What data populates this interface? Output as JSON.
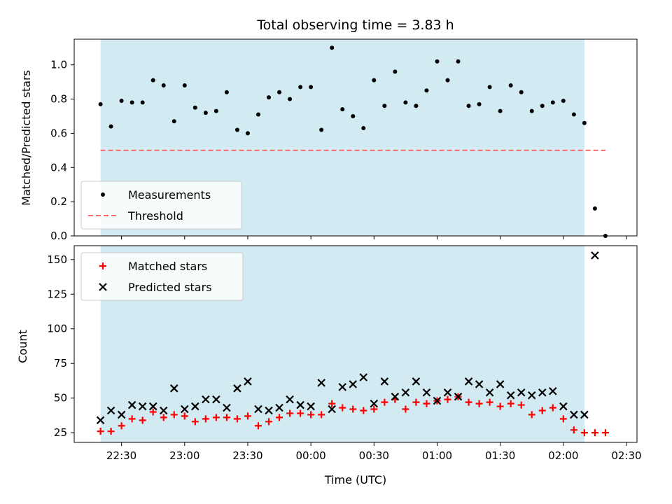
{
  "chart_data": {
    "type": "scatter",
    "title": "Total observing time = 3.83 h",
    "xlabel": "Time (UTC)",
    "x_unit": "minutes",
    "x_ticks": [
      {
        "value": 30,
        "label": "22:30"
      },
      {
        "value": 60,
        "label": "23:00"
      },
      {
        "value": 90,
        "label": "23:30"
      },
      {
        "value": 120,
        "label": "00:00"
      },
      {
        "value": 150,
        "label": "00:30"
      },
      {
        "value": 180,
        "label": "01:00"
      },
      {
        "value": 210,
        "label": "01:30"
      },
      {
        "value": 240,
        "label": "02:00"
      },
      {
        "value": 270,
        "label": "02:30"
      }
    ],
    "xlim": [
      7.5,
      275
    ],
    "shaded_interval": {
      "x": [
        20,
        250
      ],
      "color": "#add8e6"
    },
    "panels": [
      {
        "ylabel": "Matched/Predicted stars",
        "ylim": [
          0,
          1.15
        ],
        "yticks": [
          "0.0",
          "0.2",
          "0.4",
          "0.6",
          "0.8",
          "1.0"
        ],
        "legend_position": "lower-left",
        "series": [
          {
            "name": "Measurements",
            "marker": "dot",
            "color": "#000000",
            "x": [
              20,
              25,
              30,
              35,
              40,
              45,
              50,
              55,
              60,
              65,
              70,
              75,
              80,
              85,
              90,
              95,
              100,
              105,
              110,
              115,
              120,
              125,
              130,
              135,
              140,
              145,
              150,
              155,
              160,
              165,
              170,
              175,
              180,
              185,
              190,
              195,
              200,
              205,
              210,
              215,
              220,
              225,
              230,
              235,
              240,
              245,
              250,
              255,
              260
            ],
            "y": [
              0.77,
              0.64,
              0.79,
              0.78,
              0.78,
              0.91,
              0.88,
              0.67,
              0.88,
              0.75,
              0.72,
              0.73,
              0.84,
              0.62,
              0.6,
              0.71,
              0.81,
              0.84,
              0.8,
              0.87,
              0.87,
              0.62,
              1.1,
              0.74,
              0.7,
              0.63,
              0.91,
              0.76,
              0.96,
              0.78,
              0.76,
              0.85,
              1.02,
              0.91,
              1.02,
              0.76,
              0.77,
              0.87,
              0.73,
              0.88,
              0.84,
              0.73,
              0.76,
              0.78,
              0.79,
              0.71,
              0.66,
              0.16,
              0.0
            ]
          },
          {
            "name": "Threshold",
            "line_style": "dashed",
            "color": "#ff6b6b",
            "x": [
              20,
              260
            ],
            "y": [
              0.5,
              0.5
            ]
          }
        ]
      },
      {
        "ylabel": "Count",
        "ylim": [
          18,
          160
        ],
        "yticks": [
          "25",
          "50",
          "75",
          "100",
          "125",
          "150"
        ],
        "legend_position": "upper-left",
        "series": [
          {
            "name": "Matched stars",
            "marker": "plus",
            "color": "#ff0000",
            "x": [
              20,
              25,
              30,
              35,
              40,
              45,
              50,
              55,
              60,
              65,
              70,
              75,
              80,
              85,
              90,
              95,
              100,
              105,
              110,
              115,
              120,
              125,
              130,
              135,
              140,
              145,
              150,
              155,
              160,
              165,
              170,
              175,
              180,
              185,
              190,
              195,
              200,
              205,
              210,
              215,
              220,
              225,
              230,
              235,
              240,
              245,
              250,
              255,
              260
            ],
            "y": [
              26,
              26,
              30,
              35,
              34,
              40,
              36,
              38,
              37,
              33,
              35,
              36,
              36,
              35,
              37,
              30,
              33,
              36,
              39,
              39,
              38,
              38,
              46,
              43,
              42,
              41,
              42,
              47,
              49,
              42,
              47,
              46,
              48,
              49,
              51,
              47,
              46,
              47,
              44,
              46,
              45,
              38,
              41,
              43,
              35,
              27,
              25,
              25,
              25
            ]
          },
          {
            "name": "Predicted stars",
            "marker": "x",
            "color": "#000000",
            "x": [
              20,
              25,
              30,
              35,
              40,
              45,
              50,
              55,
              60,
              65,
              70,
              75,
              80,
              85,
              90,
              95,
              100,
              105,
              110,
              115,
              120,
              125,
              130,
              135,
              140,
              145,
              150,
              155,
              160,
              165,
              170,
              175,
              180,
              185,
              190,
              195,
              200,
              205,
              210,
              215,
              220,
              225,
              230,
              235,
              240,
              245,
              250,
              255
            ],
            "y": [
              34,
              41,
              38,
              45,
              44,
              44,
              41,
              57,
              42,
              44,
              49,
              49,
              43,
              57,
              62,
              42,
              41,
              43,
              49,
              45,
              44,
              61,
              42,
              58,
              60,
              65,
              46,
              62,
              51,
              54,
              62,
              54,
              48,
              54,
              51,
              62,
              60,
              54,
              60,
              52,
              54,
              52,
              54,
              55,
              44,
              38,
              38,
              153
            ]
          }
        ]
      }
    ]
  }
}
